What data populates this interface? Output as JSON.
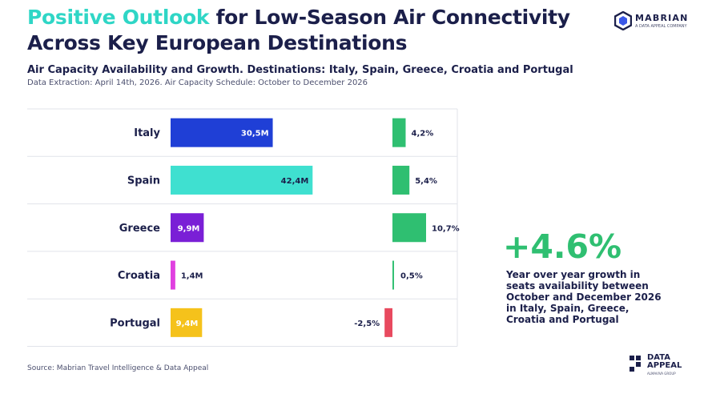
{
  "header": {
    "title_highlight": "Positive Outlook",
    "title_rest": " for Low-Season Air Connectivity Across Key European Destinations",
    "subtitle": "Air Capacity Availability and Growth. Destinations: Italy, Spain, Greece, Croatia and Portugal",
    "meta": "Data Extraction: April 14th, 2026. Air Capacity Schedule: October to December 2026"
  },
  "brand": {
    "name": "MABRIAN",
    "tagline": "A DATA APPEAL COMPANY"
  },
  "chart_data": {
    "type": "bar",
    "categories": [
      "Italy",
      "Spain",
      "Greece",
      "Croatia",
      "Portugal"
    ],
    "series": [
      {
        "values": [
          30.5,
          42.4,
          9.9,
          1.4,
          9.4
        ],
        "labels": [
          "30,5M",
          "42,4M",
          "9,9M",
          "1,4M",
          "9,4M"
        ],
        "colors": [
          "#1f3fd6",
          "#3fe0d0",
          "#7a1fd6",
          "#e040e0",
          "#f5c21b"
        ]
      },
      {
        "values": [
          4.2,
          5.4,
          10.7,
          0.5,
          -2.5
        ],
        "labels": [
          "4,2%",
          "5,4%",
          "10,7%",
          "0,5%",
          "-2,5%"
        ],
        "colors": [
          "#2fbf71",
          "#2fbf71",
          "#2fbf71",
          "#2fbf71",
          "#e84a5f"
        ]
      }
    ],
    "xlim_capacity": [
      0,
      55
    ],
    "xlim_growth": [
      -3.5,
      11
    ]
  },
  "kpi": {
    "value": "+4.6%",
    "text": "Year over year growth in seats availability between October and December 2026 in Italy, Spain, Greece, Croatia and Portugal"
  },
  "footer": {
    "source": "Source: Mabrian Travel Intelligence & Data Appeal",
    "logo_name_1": "DATA",
    "logo_name_2": "APPEAL",
    "logo_tag": "ALMAVIVA GROUP"
  }
}
